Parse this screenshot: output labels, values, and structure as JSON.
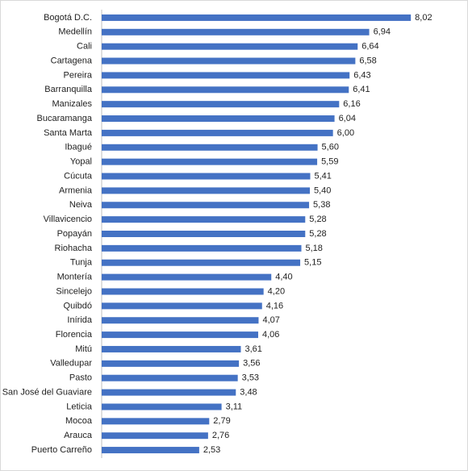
{
  "chart_data": {
    "type": "hbar",
    "color": "#4472c4",
    "xlim": [
      0,
      9
    ],
    "categories": [
      "Bogotá D.C.",
      "Medellín",
      "Cali",
      "Cartagena",
      "Pereira",
      "Barranquilla",
      "Manizales",
      "Bucaramanga",
      "Santa Marta",
      "Ibagué",
      "Yopal",
      "Cúcuta",
      "Armenia",
      "Neiva",
      "Villavicencio",
      "Popayán",
      "Riohacha",
      "Tunja",
      "Montería",
      "Sincelejo",
      "Quibdó",
      "Inírida",
      "Florencia",
      "Mitú",
      "Valledupar",
      "Pasto",
      "San José del Guaviare",
      "Leticia",
      "Mocoa",
      "Arauca",
      "Puerto Carreño"
    ],
    "values": [
      8.02,
      6.94,
      6.64,
      6.58,
      6.43,
      6.41,
      6.16,
      6.04,
      6.0,
      5.6,
      5.59,
      5.41,
      5.4,
      5.38,
      5.28,
      5.28,
      5.18,
      5.15,
      4.4,
      4.2,
      4.16,
      4.07,
      4.06,
      3.61,
      3.56,
      3.53,
      3.48,
      3.11,
      2.79,
      2.76,
      2.53
    ],
    "value_labels": [
      "8,02",
      "6,94",
      "6,64",
      "6,58",
      "6,43",
      "6,41",
      "6,16",
      "6,04",
      "6,00",
      "5,60",
      "5,59",
      "5,41",
      "5,40",
      "5,38",
      "5,28",
      "5,28",
      "5,18",
      "5,15",
      "4,40",
      "4,20",
      "4,16",
      "4,07",
      "4,06",
      "3,61",
      "3,56",
      "3,53",
      "3,48",
      "3,11",
      "2,79",
      "2,76",
      "2,53"
    ]
  }
}
